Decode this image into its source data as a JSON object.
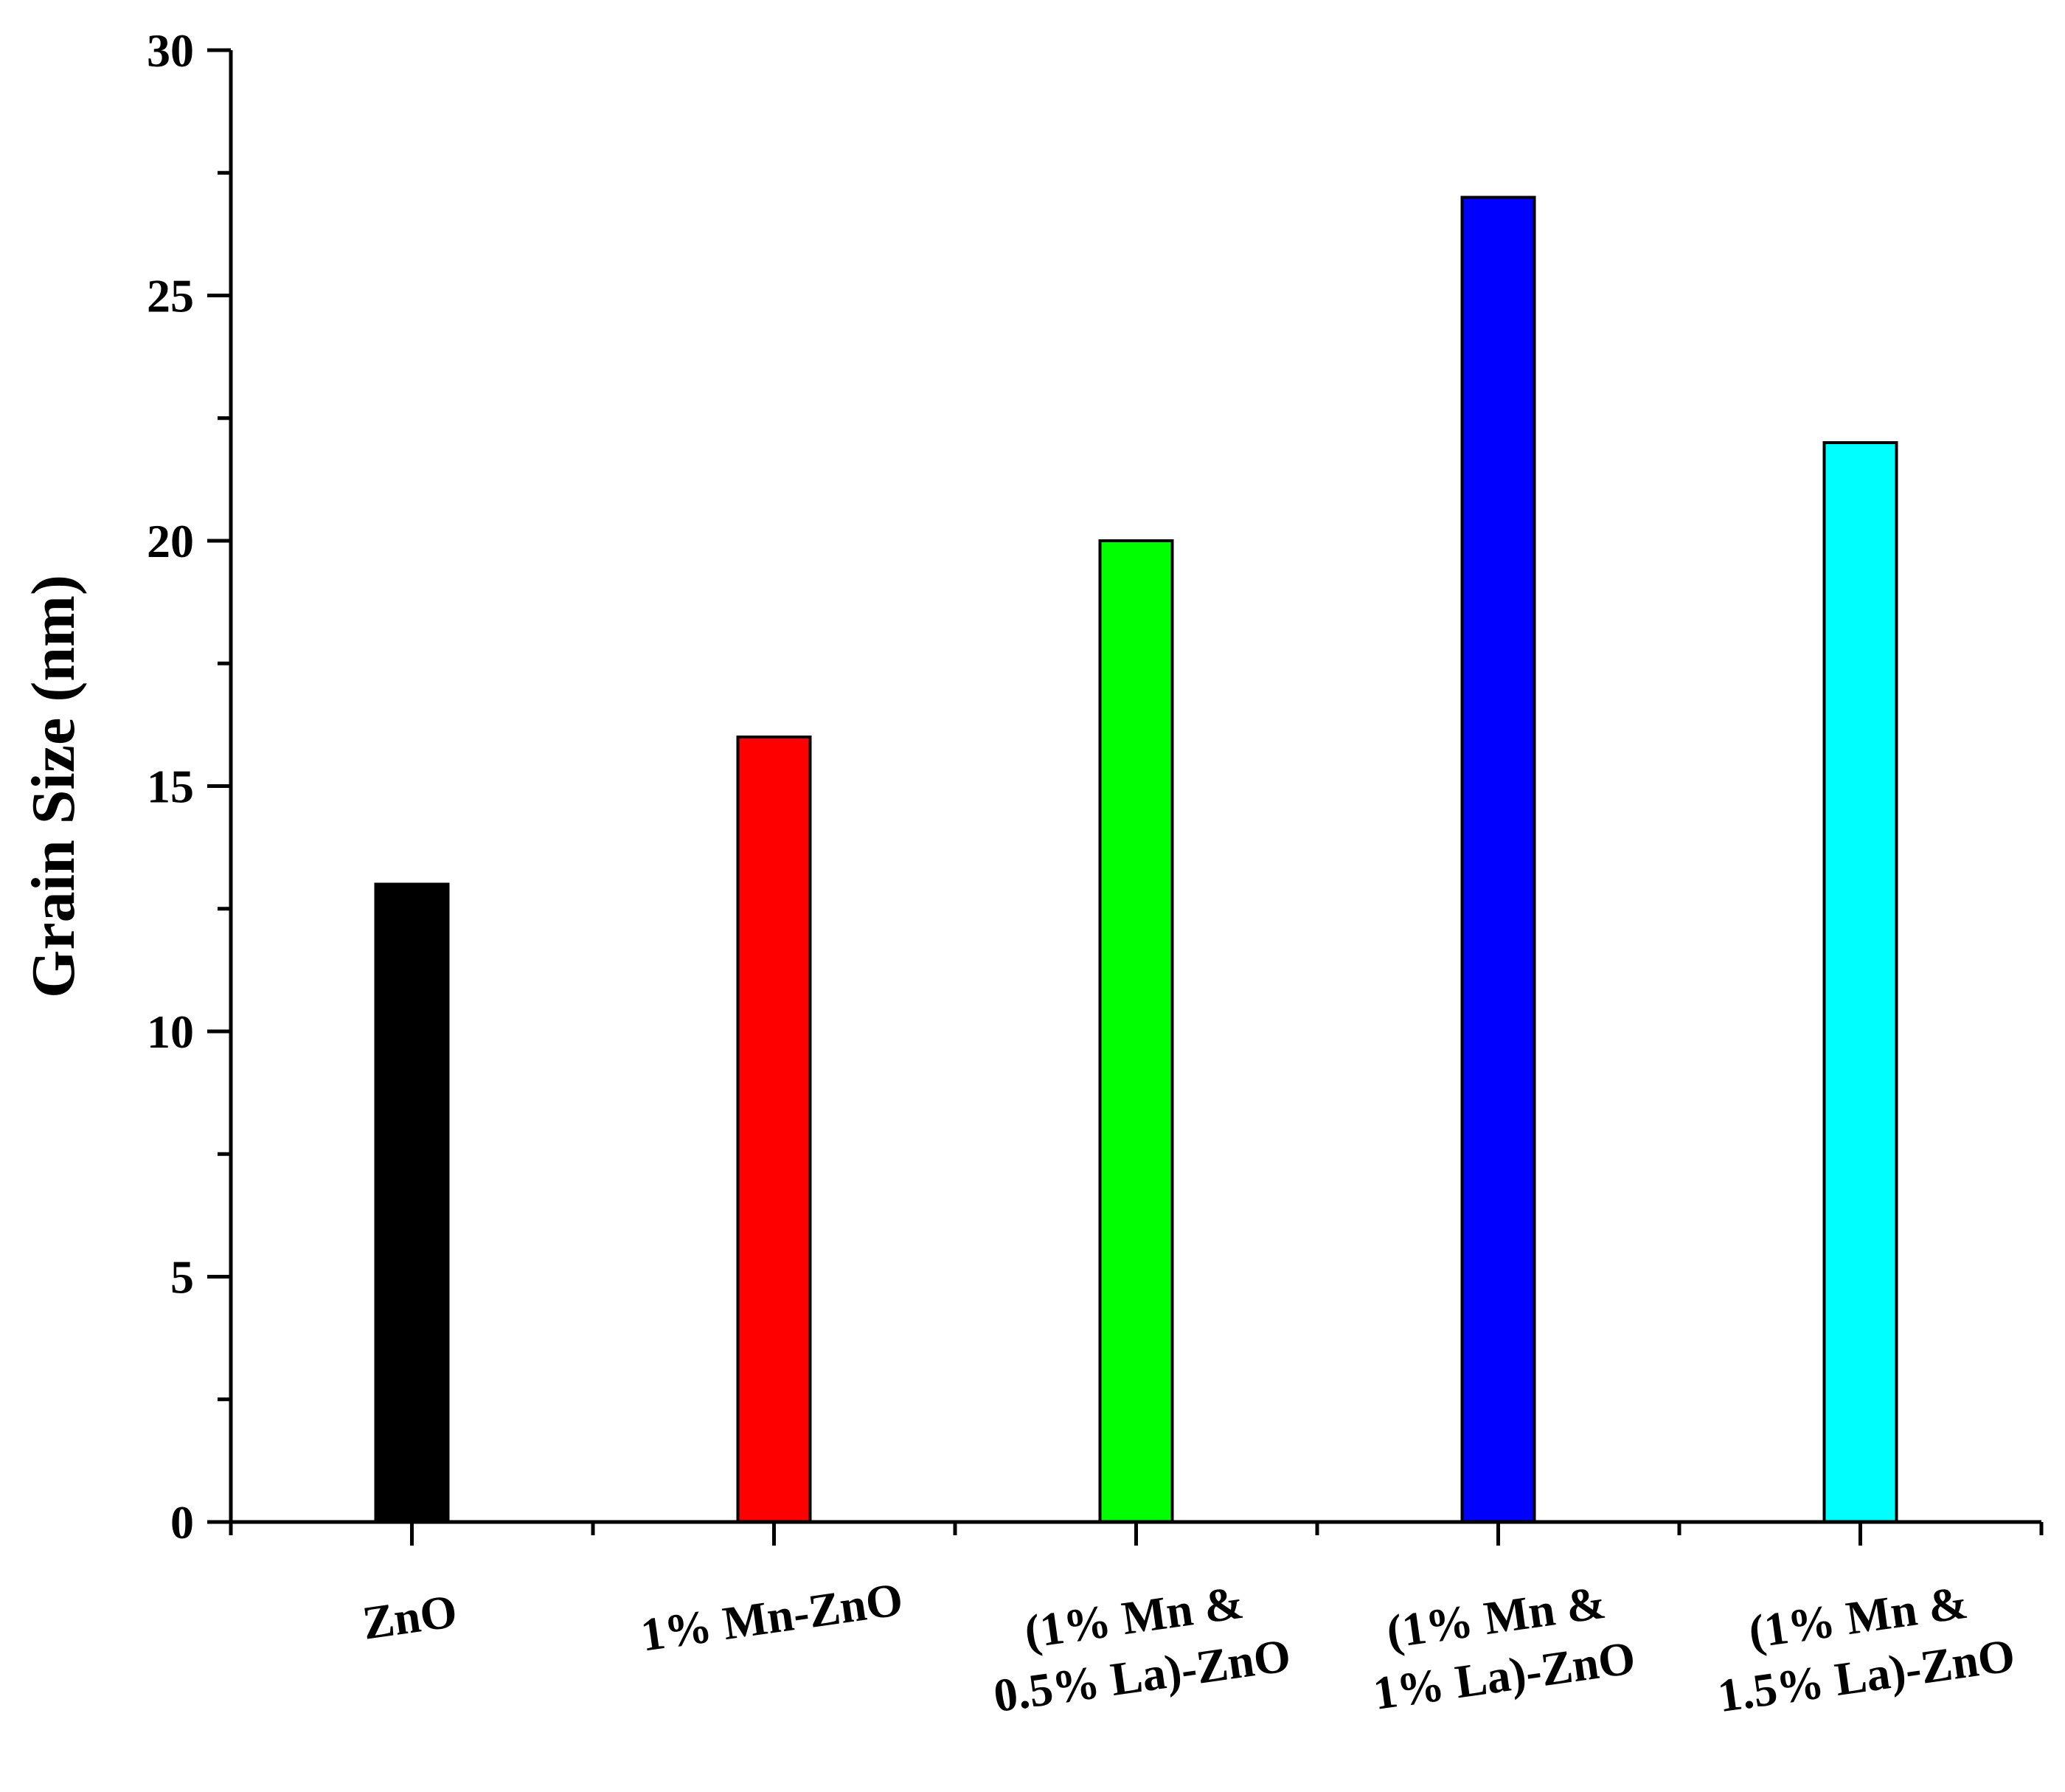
{
  "chart_data": {
    "type": "bar",
    "title": "",
    "xlabel": "",
    "ylabel": "Grain Size (nm)",
    "ylim": [
      0,
      30
    ],
    "y_major_ticks": [
      0,
      5,
      10,
      15,
      20,
      25,
      30
    ],
    "y_tick_labels": [
      "0",
      "5",
      "10",
      "15",
      "20",
      "25",
      "30"
    ],
    "categories": [
      [
        "ZnO"
      ],
      [
        "1% Mn-ZnO"
      ],
      [
        "(1% Mn &",
        "0.5% La)-ZnO"
      ],
      [
        "(1% Mn &",
        "1% La)-ZnO"
      ],
      [
        "(1% Mn &",
        "1.5% La)-ZnO"
      ]
    ],
    "values": [
      13,
      16,
      20,
      27,
      22
    ],
    "bar_colors": [
      "#000000",
      "#ff0000",
      "#00ff00",
      "#0000ff",
      "#00ffff"
    ],
    "grid": false,
    "legend": "none"
  }
}
